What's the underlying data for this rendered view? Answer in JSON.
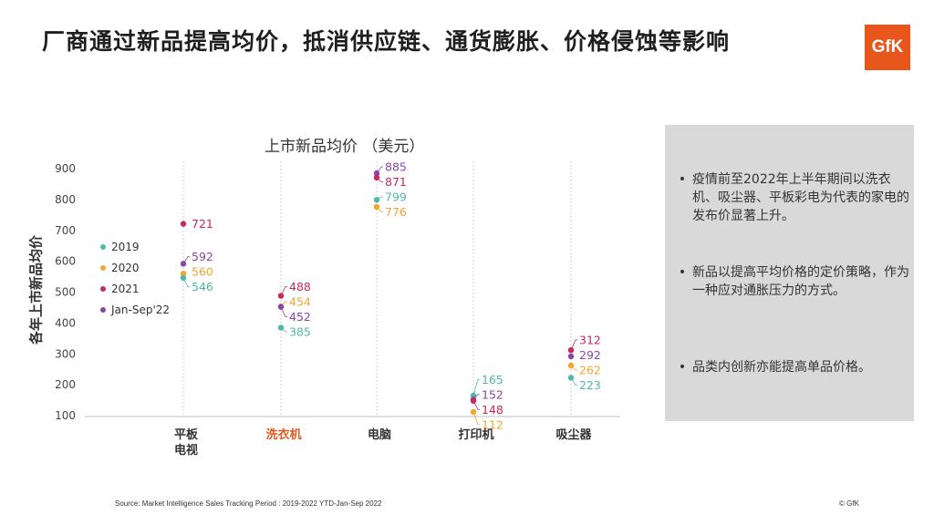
{
  "header": {
    "title": "厂商通过新品提高均价，抵消供应链、通货膨胀、价格侵蚀等影响",
    "logo_text": "GfK",
    "brand_color": "#e8561b"
  },
  "chart_data": {
    "type": "scatter",
    "title": "上市新品均价 （美元）",
    "ylabel": "各年上市新品均价",
    "xlabel": "",
    "ylim": [
      100,
      900
    ],
    "yticks": [
      100,
      200,
      300,
      400,
      500,
      600,
      700,
      800,
      900
    ],
    "grid": false,
    "legend_position": "left",
    "categories": [
      "平板\n电视",
      "洗衣机",
      "电脑",
      "打印机",
      "吸尘器"
    ],
    "highlight_category": "洗衣机",
    "highlight_color": "#e8561b",
    "series": [
      {
        "name": "2019",
        "color": "#4fb8a8",
        "values": [
          546,
          385,
          799,
          165,
          223
        ]
      },
      {
        "name": "2020",
        "color": "#f2a530",
        "values": [
          560,
          454,
          776,
          112,
          262
        ]
      },
      {
        "name": "2021",
        "color": "#c8295a",
        "values": [
          721,
          488,
          871,
          148,
          312
        ]
      },
      {
        "name": "Jan-Sep'22",
        "color": "#8a45a8",
        "values": [
          592,
          452,
          885,
          152,
          292
        ]
      }
    ]
  },
  "panel": {
    "bullets": [
      "疫情前至2022年上半年期间以洗衣机、吸尘器、平板彩电为代表的家电的发布价显著上升。",
      "新品以提高平均价格的定价策略，作为一种应对通胀压力的方式。",
      "品类内创新亦能提高单品价格。"
    ],
    "bullet_symbol": "•"
  },
  "footer": {
    "source": "Source: Market Intelligence Sales Tracking Period : 2019-2022  YTD-Jan-Sep 2022",
    "copyright": "© GfK"
  }
}
